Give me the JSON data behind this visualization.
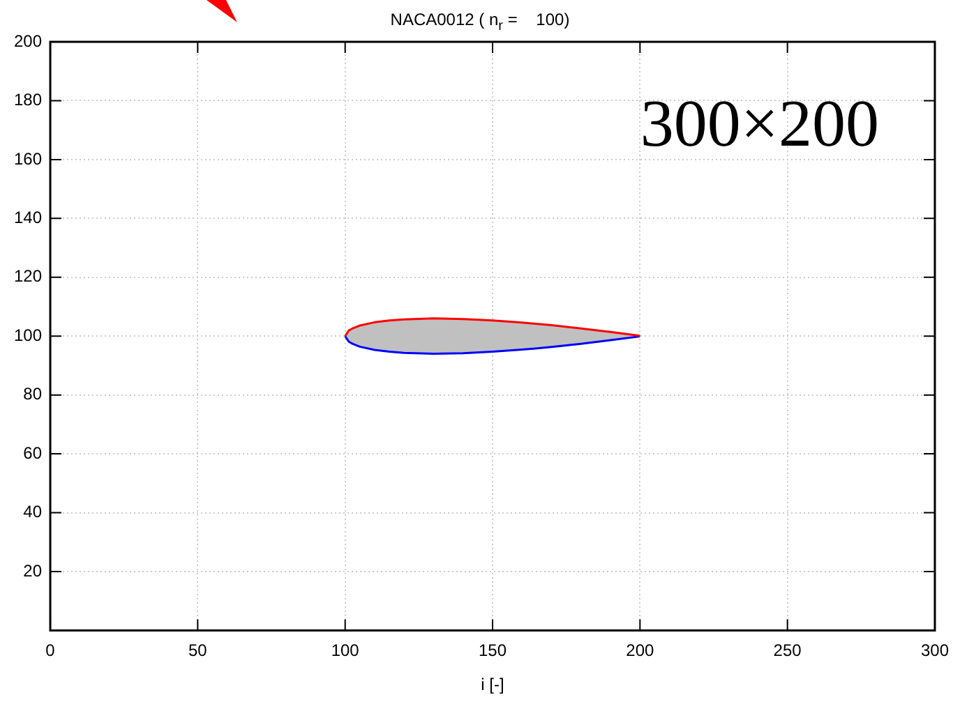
{
  "chart_data": {
    "type": "line",
    "title": "NACA0012 ( n$_{r}$ =    100)",
    "xlabel": "i [-]",
    "annotations": [
      "300×200"
    ],
    "xlim": [
      0,
      300
    ],
    "xticks": [
      0,
      50,
      100,
      150,
      200,
      250,
      300
    ],
    "ylim": [
      0,
      200
    ],
    "yticks": [
      20,
      40,
      60,
      80,
      100,
      120,
      140,
      160,
      180,
      200
    ],
    "grid": true,
    "legend": false,
    "marker": "none",
    "line_style": "solid",
    "series": [
      {
        "color": "#ff0000",
        "x": [
          100,
          101.25,
          102.5,
          105,
          110,
          115,
          120,
          130,
          140,
          150,
          160,
          170,
          180,
          190,
          200
        ],
        "values": [
          100,
          101.9,
          102.6,
          103.6,
          104.7,
          105.3,
          105.7,
          106.0,
          105.8,
          105.3,
          104.6,
          103.7,
          102.6,
          101.4,
          100.1
        ],
        "lower": [
          100,
          98.1,
          97.4,
          96.4,
          95.3,
          94.7,
          94.3,
          94.0,
          94.2,
          94.7,
          95.4,
          96.3,
          97.4,
          98.6,
          99.9
        ],
        "upper": [
          100,
          101.9,
          102.6,
          103.6,
          104.7,
          105.3,
          105.7,
          106.0,
          105.8,
          105.3,
          104.6,
          103.7,
          102.6,
          101.4,
          100.1
        ]
      },
      {
        "color": "#0000ff",
        "x": [
          100,
          101.25,
          102.5,
          105,
          110,
          115,
          120,
          130,
          140,
          150,
          160,
          170,
          180,
          190,
          200
        ],
        "values": [
          100,
          98.1,
          97.4,
          96.4,
          95.3,
          94.7,
          94.3,
          94.0,
          94.2,
          94.7,
          95.4,
          96.3,
          97.4,
          98.6,
          99.9
        ]
      }
    ]
  }
}
